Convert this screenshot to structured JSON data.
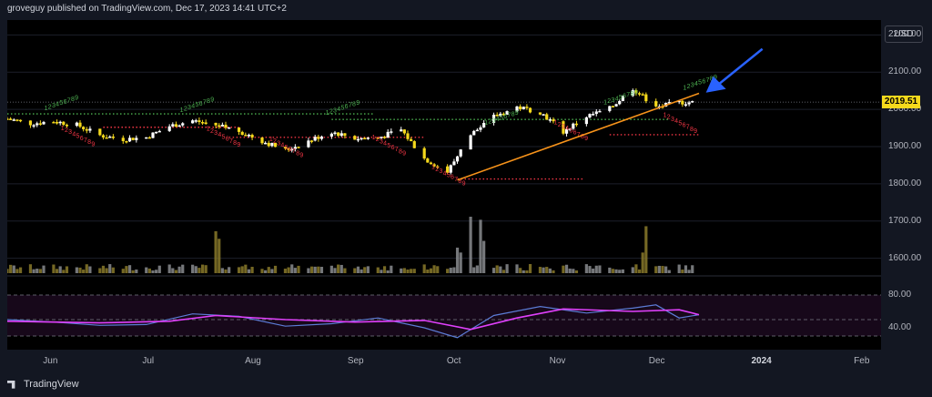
{
  "header": {
    "text": "groveguy published on TradingView.com, Dec 17, 2023 14:41 UTC+2"
  },
  "footer": {
    "brand": "TradingView"
  },
  "currency_button": "USD",
  "current_price": "2019.51",
  "price_axis": {
    "ticks": [
      "2200.00",
      "2100.00",
      "2000.00",
      "1900.00",
      "1800.00",
      "1700.00",
      "1600.00"
    ]
  },
  "rsi_axis": {
    "ticks": [
      "80.00",
      "40.00"
    ]
  },
  "time_axis": {
    "labels": [
      "Jun",
      "Jul",
      "Aug",
      "Sep",
      "Oct",
      "Nov",
      "Dec",
      "2024",
      "Feb"
    ]
  },
  "colors": {
    "up": "#ffffff",
    "down": "#f5d91c",
    "trend": "#f7931a",
    "rsi": "#5b7bd5",
    "rsi_ma": "#e040fb",
    "arrow": "#2962ff",
    "buy_count": "#4caf50",
    "sell_count": "#f23645"
  },
  "chart_data": {
    "type": "candlestick",
    "x_range": [
      "2023-05-22",
      "2024-02-10"
    ],
    "price_range": [
      1560,
      2240
    ],
    "price_ticks": [
      2200,
      2100,
      2000,
      1900,
      1800,
      1700,
      1600
    ],
    "current_price": 2019.51,
    "trendline": {
      "from": [
        "2023-10-05",
        1810
      ],
      "to": [
        "2023-12-17",
        2043
      ]
    },
    "dotted_levels": [
      {
        "value": 1988,
        "color": "green",
        "from": "2023-05-22",
        "to": "2023-09-10"
      },
      {
        "value": 1973,
        "color": "green",
        "from": "2023-08-28",
        "to": "2023-12-08"
      },
      {
        "value": 1952,
        "color": "red",
        "from": "2023-06-20",
        "to": "2023-07-31"
      },
      {
        "value": 1925,
        "color": "red",
        "from": "2023-07-28",
        "to": "2023-09-25"
      },
      {
        "value": 1813,
        "color": "red",
        "from": "2023-10-05",
        "to": "2023-11-12"
      },
      {
        "value": 1932,
        "color": "red",
        "from": "2023-11-20",
        "to": "2023-12-17"
      }
    ],
    "close_series": [
      [
        "2023-05-22",
        1975
      ],
      [
        "2023-05-29",
        1962
      ],
      [
        "2023-06-05",
        1968
      ],
      [
        "2023-06-12",
        1958
      ],
      [
        "2023-06-19",
        1930
      ],
      [
        "2023-06-26",
        1920
      ],
      [
        "2023-07-03",
        1925
      ],
      [
        "2023-07-10",
        1955
      ],
      [
        "2023-07-17",
        1970
      ],
      [
        "2023-07-24",
        1958
      ],
      [
        "2023-07-31",
        1942
      ],
      [
        "2023-08-07",
        1915
      ],
      [
        "2023-08-14",
        1890
      ],
      [
        "2023-08-21",
        1915
      ],
      [
        "2023-08-28",
        1940
      ],
      [
        "2023-09-04",
        1922
      ],
      [
        "2023-09-11",
        1924
      ],
      [
        "2023-09-18",
        1945
      ],
      [
        "2023-09-25",
        1868
      ],
      [
        "2023-10-02",
        1832
      ],
      [
        "2023-10-09",
        1932
      ],
      [
        "2023-10-16",
        1980
      ],
      [
        "2023-10-23",
        2006
      ],
      [
        "2023-10-30",
        1993
      ],
      [
        "2023-11-06",
        1940
      ],
      [
        "2023-11-13",
        1981
      ],
      [
        "2023-11-20",
        2002
      ],
      [
        "2023-11-27",
        2057
      ],
      [
        "2023-12-04",
        2005
      ],
      [
        "2023-12-11",
        2019
      ]
    ],
    "volume": {
      "spike_dates": [
        "2023-07-24",
        "2023-10-06",
        "2023-10-13",
        "2023-12-01"
      ]
    },
    "rsi": {
      "range": [
        20,
        100
      ],
      "levels": [
        80,
        50,
        30
      ],
      "ticks": [
        80,
        40
      ],
      "series": [
        [
          "2023-05-22",
          50
        ],
        [
          "2023-06-05",
          47
        ],
        [
          "2023-06-19",
          43
        ],
        [
          "2023-07-03",
          44
        ],
        [
          "2023-07-17",
          57
        ],
        [
          "2023-07-31",
          54
        ],
        [
          "2023-08-14",
          42
        ],
        [
          "2023-08-28",
          45
        ],
        [
          "2023-09-11",
          52
        ],
        [
          "2023-09-25",
          40
        ],
        [
          "2023-10-05",
          28
        ],
        [
          "2023-10-16",
          55
        ],
        [
          "2023-10-30",
          66
        ],
        [
          "2023-11-13",
          58
        ],
        [
          "2023-11-27",
          64
        ],
        [
          "2023-12-04",
          68
        ],
        [
          "2023-12-11",
          52
        ],
        [
          "2023-12-17",
          56
        ]
      ],
      "ma": [
        [
          "2023-05-22",
          48
        ],
        [
          "2023-06-19",
          46
        ],
        [
          "2023-07-10",
          48
        ],
        [
          "2023-07-24",
          55
        ],
        [
          "2023-08-14",
          50
        ],
        [
          "2023-09-04",
          47
        ],
        [
          "2023-09-25",
          49
        ],
        [
          "2023-10-09",
          38
        ],
        [
          "2023-10-23",
          52
        ],
        [
          "2023-11-06",
          63
        ],
        [
          "2023-11-27",
          60
        ],
        [
          "2023-12-11",
          62
        ],
        [
          "2023-12-17",
          56
        ]
      ]
    }
  }
}
